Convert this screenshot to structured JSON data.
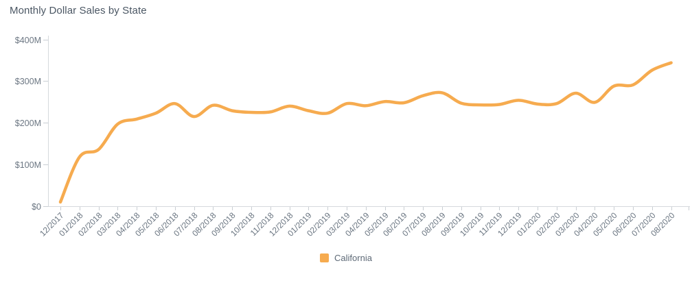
{
  "title": "Monthly Dollar Sales by State",
  "colors": {
    "accent_orange": "#F6AB4F",
    "title_text": "#4A5663",
    "axis_text": "#6B7682",
    "axis_line": "#D5D9DD",
    "tick_line": "#C9CED3",
    "legend_text": "#5D6976",
    "background": "#FFFFFF"
  },
  "legend": {
    "items": [
      {
        "label": "California",
        "color": "#F6AB4F"
      }
    ]
  },
  "chart_data": {
    "type": "line",
    "title": "Monthly Dollar Sales by State",
    "xlabel": "",
    "ylabel": "",
    "x": [
      "12/2017",
      "01/2018",
      "02/2018",
      "03/2018",
      "04/2018",
      "05/2018",
      "06/2018",
      "07/2018",
      "08/2018",
      "09/2018",
      "10/2018",
      "11/2018",
      "12/2018",
      "01/2019",
      "02/2019",
      "03/2019",
      "04/2019",
      "05/2019",
      "06/2019",
      "07/2019",
      "08/2019",
      "09/2019",
      "10/2019",
      "11/2019",
      "12/2019",
      "01/2020",
      "02/2020",
      "03/2020",
      "04/2020",
      "05/2020",
      "06/2020",
      "07/2020",
      "08/2020"
    ],
    "series": [
      {
        "name": "California",
        "color": "#F6AB4F",
        "values": [
          10,
          118,
          136,
          197,
          209,
          223,
          246,
          215,
          242,
          229,
          225,
          226,
          240,
          229,
          223,
          246,
          241,
          251,
          248,
          265,
          272,
          247,
          243,
          244,
          254,
          245,
          246,
          271,
          249,
          288,
          291,
          326,
          344
        ]
      }
    ],
    "value_unit": "millions USD",
    "ylim": [
      0,
      400
    ],
    "y_ticks": [
      {
        "value": 0,
        "label": "$0"
      },
      {
        "value": 100,
        "label": "$100M"
      },
      {
        "value": 200,
        "label": "$200M"
      },
      {
        "value": 300,
        "label": "$300M"
      },
      {
        "value": 400,
        "label": "$400M"
      }
    ],
    "grid": false,
    "smooth": true,
    "legend_position": "bottom"
  }
}
